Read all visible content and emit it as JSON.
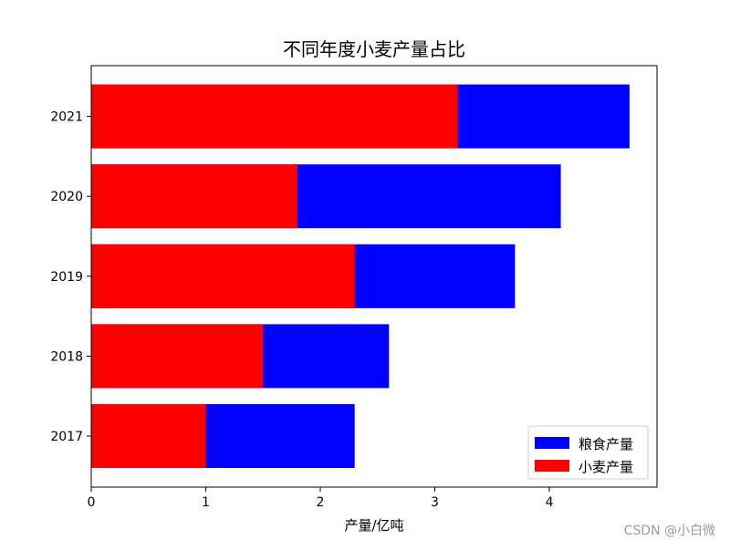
{
  "watermark": "CSDN @小白微",
  "chart_data": {
    "type": "bar",
    "orientation": "horizontal",
    "title": "不同年度小麦产量占比",
    "xlabel": "产量/亿吨",
    "ylabel": "",
    "categories": [
      "2017",
      "2018",
      "2019",
      "2020",
      "2021"
    ],
    "xlim": [
      0,
      4.94
    ],
    "xticks": [
      0,
      1,
      2,
      3,
      4
    ],
    "grid": false,
    "legend_position": "lower-right",
    "series": [
      {
        "name": "粮食产量",
        "color": "#0000ff",
        "values": [
          2.3,
          2.6,
          3.7,
          4.1,
          4.7
        ]
      },
      {
        "name": "小麦产量",
        "color": "#ff0000",
        "values": [
          1.0,
          1.5,
          2.3,
          1.8,
          3.2
        ]
      }
    ]
  }
}
